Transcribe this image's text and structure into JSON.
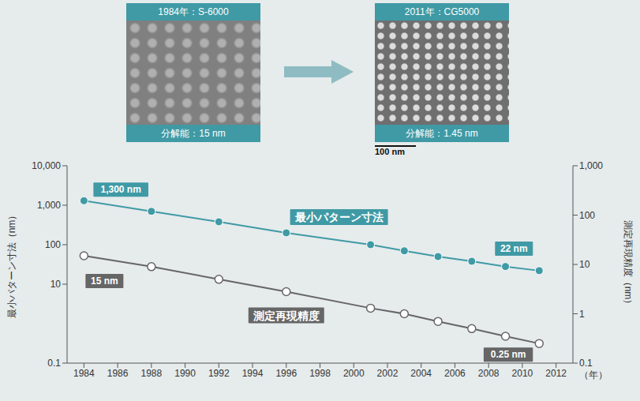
{
  "panels": [
    {
      "label": "1984年：S-6000",
      "caption": "分解能：15 nm"
    },
    {
      "label": "2011年：CG5000",
      "caption": "分解能：1.45 nm",
      "scale_bar": "100 nm"
    }
  ],
  "chart_data": {
    "type": "line",
    "x": [
      1984,
      1988,
      1992,
      1996,
      2001,
      2003,
      2005,
      2007,
      2009,
      2011
    ],
    "xlim": [
      1983,
      2013
    ],
    "xticks": [
      1984,
      1986,
      1988,
      1990,
      1992,
      1994,
      1996,
      1998,
      2000,
      2002,
      2004,
      2006,
      2008,
      2010,
      2012
    ],
    "x_label": "（年）",
    "y_label": "最小パターン寸法（nm）",
    "y2_label": "測定再現精度（nm）",
    "log": "y",
    "ylim": [
      0.1,
      10000
    ],
    "yticks": [
      0.1,
      10,
      100,
      {
        "value": 1000,
        "label": "1,000"
      },
      {
        "value": 10000,
        "label": "10,000"
      }
    ],
    "y2lim": [
      0.1,
      1000
    ],
    "y2ticks": [
      0.1,
      1,
      10,
      100,
      {
        "value": 1000,
        "label": "1,000"
      }
    ],
    "grid": false,
    "legend": false,
    "series": [
      {
        "name": "最小パターン寸法",
        "color": "#3f9aa5",
        "marker": "circle",
        "values": [
          1300,
          700,
          380,
          200,
          100,
          70,
          50,
          38,
          28,
          22
        ]
      },
      {
        "name": "測定再現精度",
        "color": "#666666",
        "marker": "open_circle",
        "axis": "y2",
        "values": [
          15,
          9,
          5,
          2.8,
          1.3,
          1.0,
          0.7,
          0.5,
          0.35,
          0.25
        ]
      }
    ],
    "annotations": [
      {
        "text": "1,300 nm",
        "x": 1984,
        "y": 1300
      },
      {
        "text": "22 nm",
        "x": 2011,
        "y": 22
      },
      {
        "text": "15 nm",
        "x": 1984,
        "y": 15,
        "axis": "y2"
      },
      {
        "text": "0.25 nm",
        "x": 2011,
        "y": 0.25,
        "axis": "y2"
      }
    ]
  }
}
